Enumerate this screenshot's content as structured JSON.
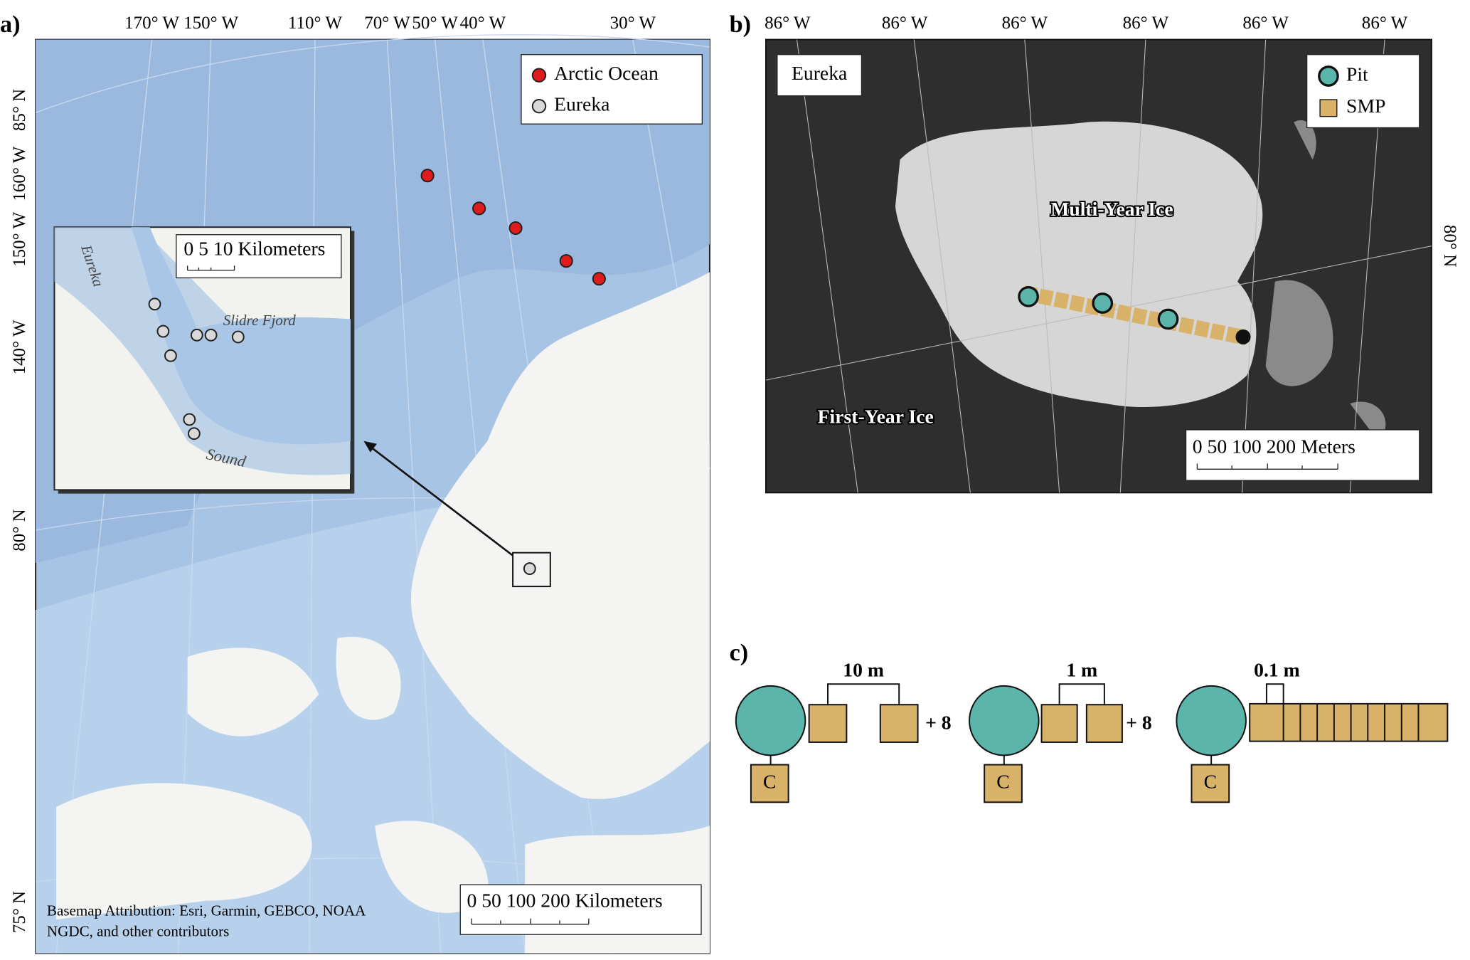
{
  "panel_a": {
    "label": "a)",
    "top_labels": [
      "170° W",
      "150° W",
      "110° W",
      "70° W",
      "50° W",
      "40° W",
      "30° W"
    ],
    "left_labels": [
      "85° N",
      "160° W",
      "150° W",
      "140° W",
      "80° N",
      "75° N"
    ],
    "legend": [
      "Arctic Ocean",
      "Eureka"
    ],
    "inset": {
      "scale": "0  5  10 Kilometers",
      "place_1": "Eureka",
      "place_2": "Slidre Fjord",
      "place_3": "Sound"
    },
    "scale": "0  50 100      200 Kilometers",
    "attribution_1": "Basemap Attribution: Esri, Garmin, GEBCO, NOAA",
    "attribution_2": "NGDC, and other contributors"
  },
  "panel_b": {
    "label": "b)",
    "top_labels": [
      "86° W",
      "86° W",
      "86° W",
      "86° W",
      "86° W",
      "86° W"
    ],
    "right_label": "80° N",
    "site": "Eureka",
    "legend": [
      "Pit",
      "SMP"
    ],
    "region_1": "Multi-Year Ice",
    "region_2": "First-Year Ice",
    "scale": "0    50  100        200 Meters"
  },
  "panel_c": {
    "label": "c)",
    "spacings": [
      "10 m",
      "1 m",
      "0.1 m"
    ],
    "plus": [
      "+ 8",
      "+ 8"
    ],
    "core": [
      "C",
      "C",
      "C"
    ]
  }
}
